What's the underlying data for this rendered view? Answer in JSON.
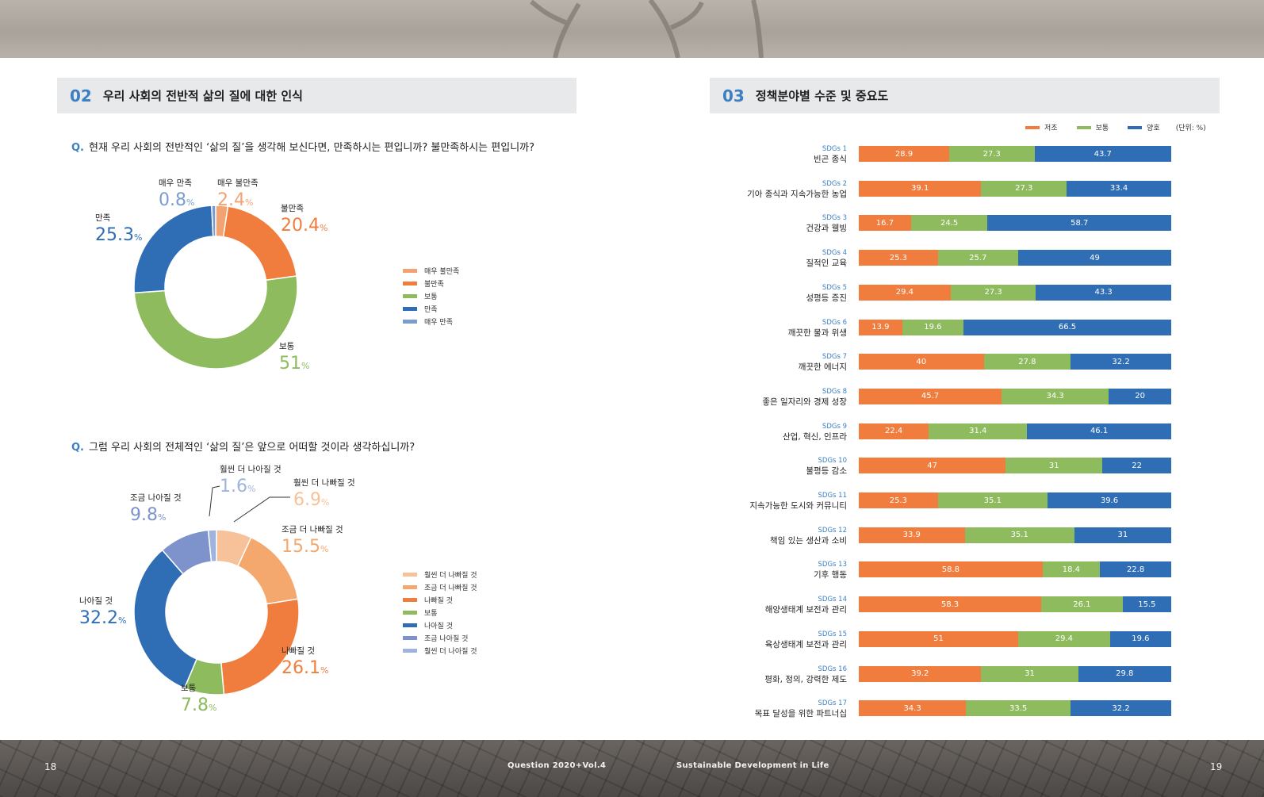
{
  "colors": {
    "very_unsat": "#f3a371",
    "unsat": "#f07d3d",
    "neutral": "#8dbb5e",
    "sat": "#2f6db5",
    "very_sat": "#7a9dd0",
    "much_better": "#9fb3dc",
    "bit_better": "#7e93cc",
    "bit_worse": "#f4a86e",
    "much_worse": "#f7c19a"
  },
  "section02": {
    "num": "02",
    "title": "우리 사회의 전반적 삶의 질에 대한 인식"
  },
  "section03": {
    "num": "03",
    "title": "정책분야별 수준 및 중요도"
  },
  "q1": {
    "prefix": "Q.",
    "text": "현재 우리 사회의 전반적인 ‘삶의 질’을 생각해 보신다면, 만족하시는 편입니까? 불만족하시는 편입니까?"
  },
  "q2": {
    "prefix": "Q.",
    "text": "그럼 우리 사회의 전체적인 ‘삶의 질’은 앞으로 어떠할 것이라 생각하십니까?"
  },
  "footer": {
    "left_page": "18",
    "right_page": "19",
    "left_text": "Question  2020+Vol.4",
    "right_text": "Sustainable Development in Life"
  },
  "chart_data": [
    {
      "type": "pie",
      "donut": true,
      "unit": "%",
      "categories": [
        "매우 불만족",
        "불만족",
        "보통",
        "만족",
        "매우 만족"
      ],
      "values": [
        2.4,
        20.4,
        51,
        25.3,
        0.8
      ],
      "value_labels": [
        "2.4",
        "20.4",
        "51",
        "25.3",
        "0.8"
      ],
      "legend": [
        "매우 불만족",
        "불만족",
        "보통",
        "만족",
        "매우 만족"
      ],
      "colors": [
        "#f3a371",
        "#f07d3d",
        "#8dbb5e",
        "#2f6db5",
        "#7a9dd0"
      ],
      "legend_position": "right"
    },
    {
      "type": "pie",
      "donut": true,
      "unit": "%",
      "categories": [
        "훨씬 더 나빠질 것",
        "조금 더 나빠질 것",
        "나빠질 것",
        "보통",
        "나아질 것",
        "조금 나아질 것",
        "훨씬 더 나아질 것"
      ],
      "values": [
        6.9,
        15.5,
        26.1,
        7.8,
        32.2,
        9.8,
        1.6
      ],
      "value_labels": [
        "6.9",
        "15.5",
        "26.1",
        "7.8",
        "32.2",
        "9.8",
        "1.6"
      ],
      "legend": [
        "훨씬 더 나빠질 것",
        "조금 더 나빠질 것",
        "나빠질 것",
        "보통",
        "나아질 것",
        "조금 나아질 것",
        "훨씬 더 나아질 것"
      ],
      "colors": [
        "#f7c19a",
        "#f4a86e",
        "#f07d3d",
        "#8dbb5e",
        "#2f6db5",
        "#7e93cc",
        "#9fb3dc"
      ],
      "legend_position": "right"
    },
    {
      "type": "bar",
      "orientation": "horizontal",
      "stacked": true,
      "unit_label": "(단위: %)",
      "codes": [
        "SDGs 1",
        "SDGs 2",
        "SDGs 3",
        "SDGs 4",
        "SDGs 5",
        "SDGs 6",
        "SDGs 7",
        "SDGs 8",
        "SDGs 9",
        "SDGs 10",
        "SDGs 11",
        "SDGs 12",
        "SDGs 13",
        "SDGs 14",
        "SDGs 15",
        "SDGs 16",
        "SDGs 17"
      ],
      "categories": [
        "빈곤 종식",
        "기아 종식과 지속가능한 농업",
        "건강과 웰빙",
        "질적인 교육",
        "성평등 증진",
        "깨끗한 물과 위생",
        "깨끗한 에너지",
        "좋은 일자리와 경제 성장",
        "산업, 혁신, 인프라",
        "불평등 감소",
        "지속가능한 도시와 커뮤니티",
        "책임 있는 생산과 소비",
        "기후 행동",
        "해양생태계 보전과 관리",
        "육상생태계 보전과 관리",
        "평화, 정의, 강력한 제도",
        "목표 달성을 위한 파트너십"
      ],
      "series": [
        {
          "name": "저조",
          "color": "#f07d3d",
          "values": [
            28.9,
            39.1,
            16.7,
            25.3,
            29.4,
            13.9,
            40,
            45.7,
            22.4,
            47,
            25.3,
            33.9,
            58.8,
            58.3,
            51,
            39.2,
            34.3
          ]
        },
        {
          "name": "보통",
          "color": "#8dbb5e",
          "values": [
            27.3,
            27.3,
            24.5,
            25.7,
            27.3,
            19.6,
            27.8,
            34.3,
            31.4,
            31,
            35.1,
            35.1,
            18.4,
            26.1,
            29.4,
            31,
            33.5
          ]
        },
        {
          "name": "양호",
          "color": "#2f6db5",
          "values": [
            43.7,
            33.4,
            58.7,
            49,
            43.3,
            66.5,
            32.2,
            20,
            46.1,
            22,
            39.6,
            31,
            22.8,
            15.5,
            19.6,
            29.8,
            32.2
          ]
        }
      ],
      "legend_position": "top-right"
    }
  ]
}
